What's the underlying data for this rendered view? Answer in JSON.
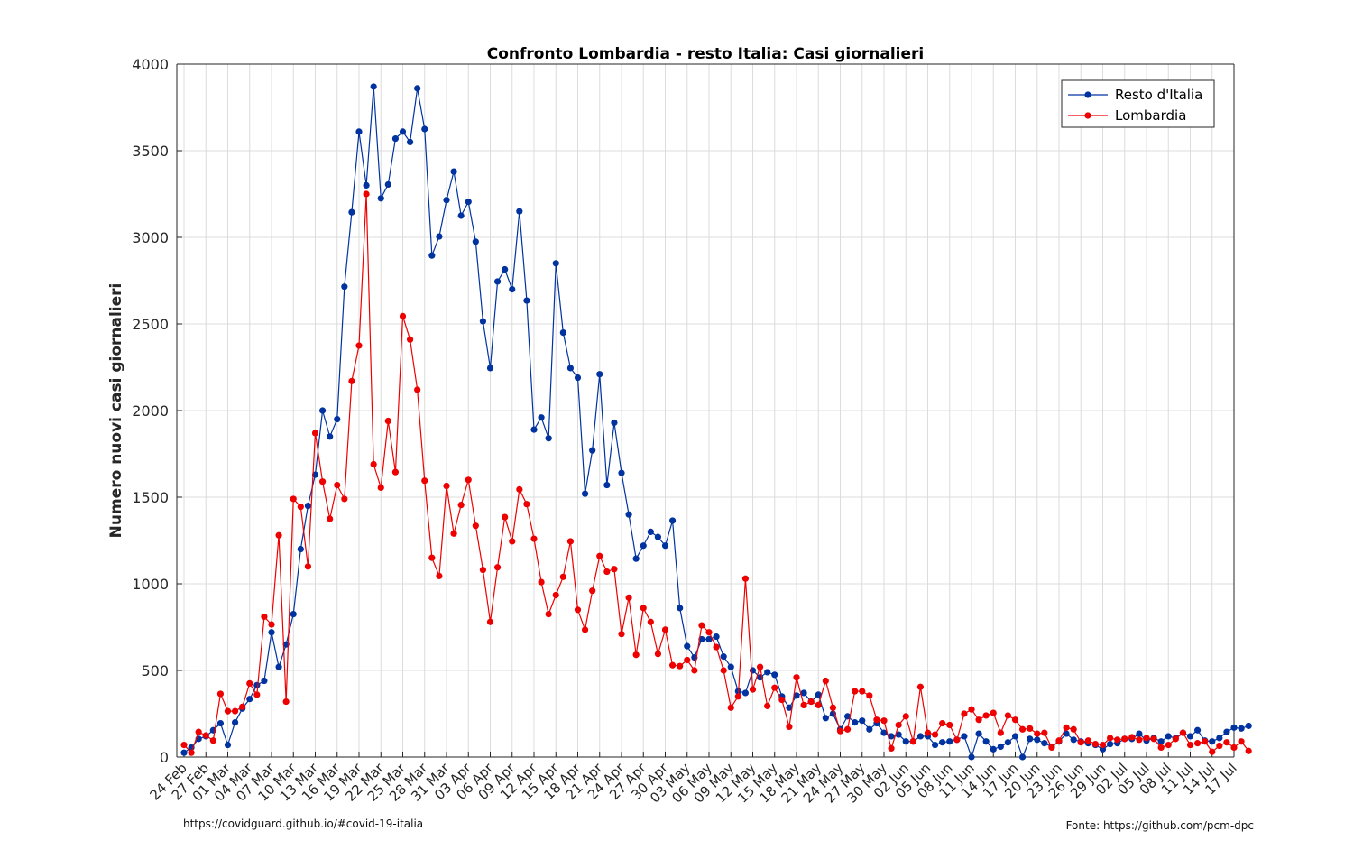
{
  "footer": {
    "left": "https://covidguard.github.io/#covid-19-italia",
    "right": "Fonte: https://github.com/pcm-dpc"
  },
  "chart_data": {
    "type": "line",
    "title": "Confronto Lombardia - resto Italia: Casi giornalieri",
    "xlabel": "",
    "ylabel": "Numero nuovi casi giornalieri",
    "ylim": [
      0,
      4000
    ],
    "yticks": [
      0,
      500,
      1000,
      1500,
      2000,
      2500,
      3000,
      3500,
      4000
    ],
    "grid": true,
    "legend_position": "top-right",
    "x_start": "24 Feb",
    "x_end": "17 Jul",
    "x_tick_labels": [
      "24 Feb",
      "27 Feb",
      "01 Mar",
      "04 Mar",
      "07 Mar",
      "10 Mar",
      "13 Mar",
      "16 Mar",
      "19 Mar",
      "22 Mar",
      "25 Mar",
      "28 Mar",
      "31 Mar",
      "03 Apr",
      "06 Apr",
      "09 Apr",
      "12 Apr",
      "15 Apr",
      "18 Apr",
      "21 Apr",
      "24 Apr",
      "27 Apr",
      "30 Apr",
      "03 May",
      "06 May",
      "09 May",
      "12 May",
      "15 May",
      "18 May",
      "21 May",
      "24 May",
      "27 May",
      "30 May",
      "02 Jun",
      "05 Jun",
      "08 Jun",
      "11 Jun",
      "14 Jun",
      "17 Jun",
      "20 Jun",
      "23 Jun",
      "26 Jun",
      "29 Jun",
      "02 Jul",
      "05 Jul",
      "08 Jul",
      "11 Jul",
      "14 Jul",
      "17 Jul"
    ],
    "series": [
      {
        "name": "Resto d'Italia",
        "color": "#0033a0",
        "values": [
          25,
          55,
          105,
          120,
          155,
          195,
          70,
          200,
          280,
          335,
          415,
          440,
          720,
          520,
          650,
          825,
          1200,
          1450,
          1630,
          2000,
          1850,
          1950,
          2715,
          3145,
          3610,
          3300,
          3870,
          3225,
          3305,
          3570,
          3610,
          3550,
          3860,
          3625,
          2895,
          3005,
          3215,
          3380,
          3125,
          3205,
          2975,
          2515,
          2245,
          2745,
          2815,
          2700,
          3150,
          2635,
          1890,
          1960,
          1840,
          2850,
          2450,
          2245,
          2190,
          1520,
          1770,
          2210,
          1570,
          1930,
          1640,
          1400,
          1145,
          1220,
          1300,
          1270,
          1220,
          1365,
          860,
          640,
          575,
          680,
          680,
          695,
          580,
          520,
          380,
          370,
          500,
          460,
          490,
          475,
          350,
          285,
          355,
          370,
          320,
          360,
          225,
          250,
          160,
          235,
          200,
          210,
          160,
          195,
          140,
          120,
          130,
          90,
          90,
          120,
          120,
          70,
          85,
          90,
          100,
          120,
          0,
          135,
          90,
          45,
          60,
          85,
          120,
          0,
          105,
          100,
          80,
          60,
          90,
          135,
          100,
          90,
          80,
          70,
          45,
          75,
          80,
          105,
          105,
          135,
          95,
          110,
          90,
          120,
          110,
          140,
          120,
          155,
          95,
          90,
          110,
          145,
          170,
          165,
          180
        ]
      },
      {
        "name": "Lombardia",
        "color": "#ee0000",
        "values": [
          70,
          25,
          145,
          125,
          95,
          365,
          265,
          265,
          290,
          425,
          360,
          810,
          765,
          1280,
          320,
          1490,
          1445,
          1100,
          1870,
          1590,
          1375,
          1570,
          1490,
          2170,
          2375,
          3250,
          1690,
          1555,
          1940,
          1645,
          2545,
          2410,
          2120,
          1595,
          1150,
          1045,
          1565,
          1290,
          1455,
          1600,
          1335,
          1080,
          780,
          1095,
          1385,
          1245,
          1545,
          1460,
          1260,
          1010,
          825,
          935,
          1040,
          1245,
          850,
          735,
          960,
          1160,
          1070,
          1085,
          710,
          920,
          590,
          860,
          780,
          595,
          735,
          530,
          525,
          560,
          500,
          760,
          720,
          635,
          500,
          285,
          350,
          1030,
          390,
          520,
          295,
          400,
          330,
          175,
          460,
          300,
          320,
          300,
          440,
          285,
          150,
          160,
          380,
          380,
          355,
          215,
          210,
          50,
          185,
          235,
          90,
          405,
          140,
          130,
          195,
          185,
          100,
          250,
          275,
          215,
          240,
          255,
          140,
          240,
          215,
          160,
          165,
          135,
          140,
          55,
          95,
          170,
          160,
          85,
          95,
          75,
          70,
          110,
          100,
          105,
          115,
          100,
          110,
          105,
          55,
          70,
          105,
          140,
          70,
          80,
          90,
          30,
          65,
          85,
          55,
          90,
          35
        ]
      }
    ]
  }
}
